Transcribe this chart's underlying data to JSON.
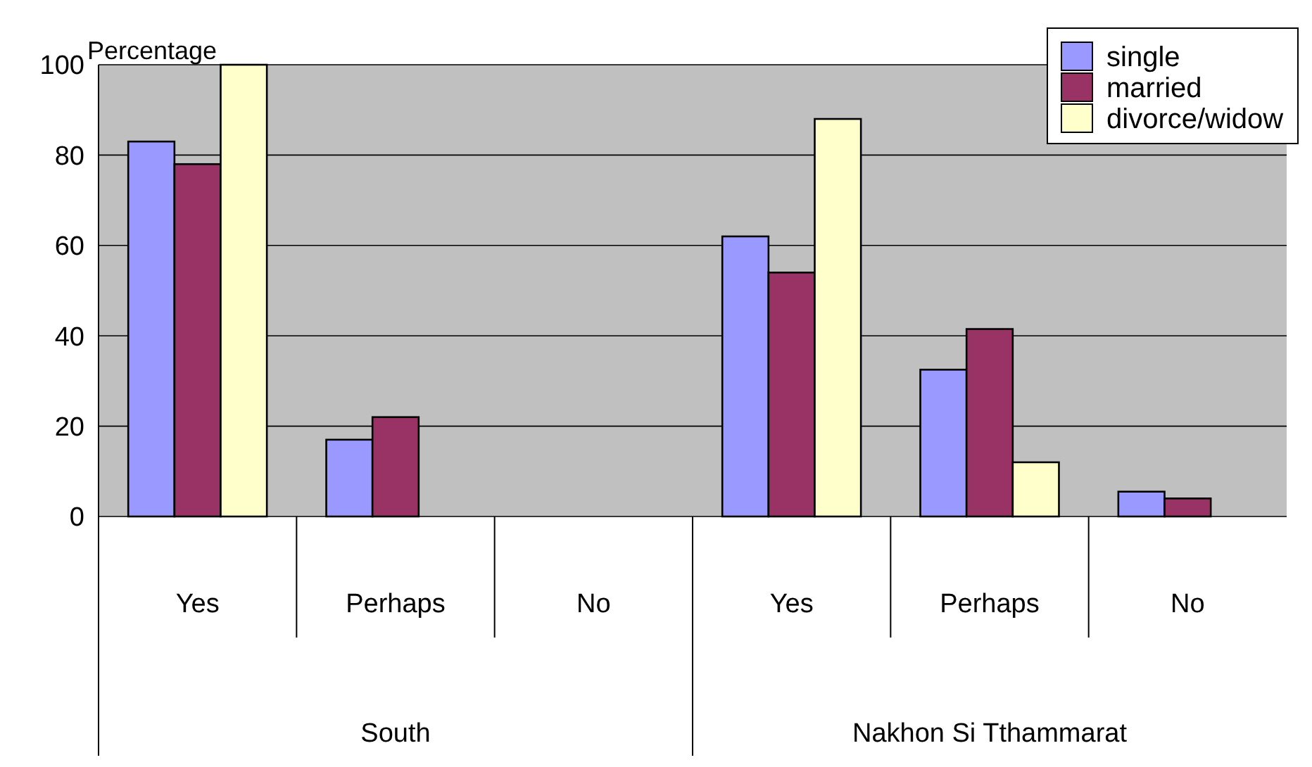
{
  "chart_data": {
    "type": "bar",
    "ylabel": "Percentage",
    "categories": [
      "Yes",
      "Perhaps",
      "No",
      "Yes",
      "Perhaps",
      "No"
    ],
    "series": [
      {
        "name": "single",
        "color": "#9999ff",
        "values": [
          83,
          17,
          null,
          62,
          32.5,
          5.5
        ]
      },
      {
        "name": "married",
        "color": "#993366",
        "values": [
          78,
          22,
          null,
          54,
          41.5,
          4
        ]
      },
      {
        "name": "divorce/widow",
        "color": "#ffffcc",
        "values": [
          100,
          null,
          null,
          88,
          12,
          null
        ]
      }
    ],
    "annotations": [
      "South",
      "Nakhon Si Tthammarat"
    ],
    "ylim": [
      0,
      100
    ],
    "yticks": [
      0,
      20,
      40,
      60,
      80,
      100
    ],
    "grid": "y",
    "legend": "top right"
  }
}
